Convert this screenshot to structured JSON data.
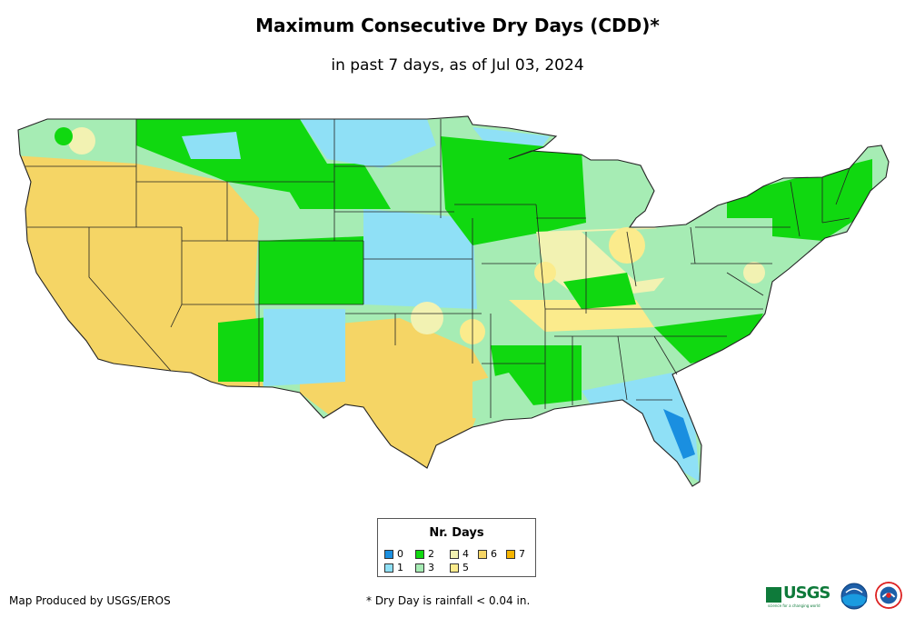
{
  "header": {
    "title": "Maximum Consecutive Dry Days (CDD)*",
    "subtitle": "in past 7 days, as of Jul 03, 2024"
  },
  "legend": {
    "title": "Nr. Days",
    "items": [
      {
        "label": "0",
        "color": "#1a8fe0"
      },
      {
        "label": "1",
        "color": "#8fe0f6"
      },
      {
        "label": "2",
        "color": "#10d810"
      },
      {
        "label": "3",
        "color": "#a6ecb4"
      },
      {
        "label": "4",
        "color": "#f2f2b2"
      },
      {
        "label": "5",
        "color": "#fbeb8c"
      },
      {
        "label": "6",
        "color": "#f5d565"
      },
      {
        "label": "7",
        "color": "#f7b500"
      }
    ]
  },
  "footer": {
    "credit": "Map Produced by USGS/EROS",
    "footnote": "* Dry Day is rainfall < 0.04 in.",
    "usgs_logo_text": "USGS",
    "usgs_tagline": "science for a changing world",
    "logos": [
      "noaa-logo",
      "national-weather-service-logo"
    ]
  },
  "map": {
    "region": "Contiguous United States",
    "colors": {
      "border": "#222222",
      "ocean": "#ffffff"
    }
  }
}
